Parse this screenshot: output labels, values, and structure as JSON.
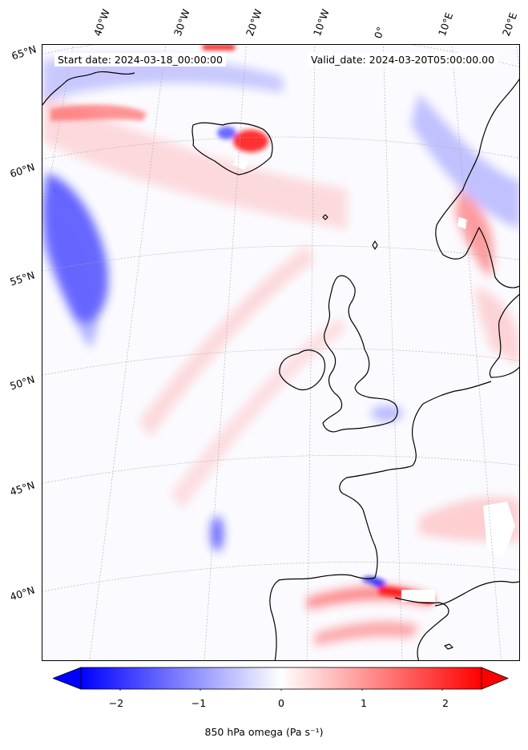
{
  "header": {
    "start_date": "Start date: 2024-03-18_00:00:00",
    "valid_date": "Valid_date: 2024-03-20T05:00:00.00"
  },
  "longitude_labels": [
    "40°W",
    "30°W",
    "20°W",
    "10°W",
    "0°",
    "10°E",
    "20°E"
  ],
  "latitude_labels": [
    "65°N",
    "60°N",
    "55°N",
    "50°N",
    "45°N",
    "40°N"
  ],
  "colorbar": {
    "label": "850 hPa omega (Pa s⁻¹)",
    "ticks": [
      "−2",
      "−1",
      "0",
      "1",
      "2"
    ],
    "range": [
      -2.6,
      2.6
    ],
    "colormap": "bwr",
    "low_color": "#0000ff",
    "mid_color": "#ffffff",
    "high_color": "#ff0000",
    "extend": "both"
  },
  "map": {
    "field": "850 hPa omega",
    "projection": "conic (Lambert)",
    "region": "North Atlantic / Western Europe",
    "coastline_color": "#000000",
    "gridlines": true
  }
}
